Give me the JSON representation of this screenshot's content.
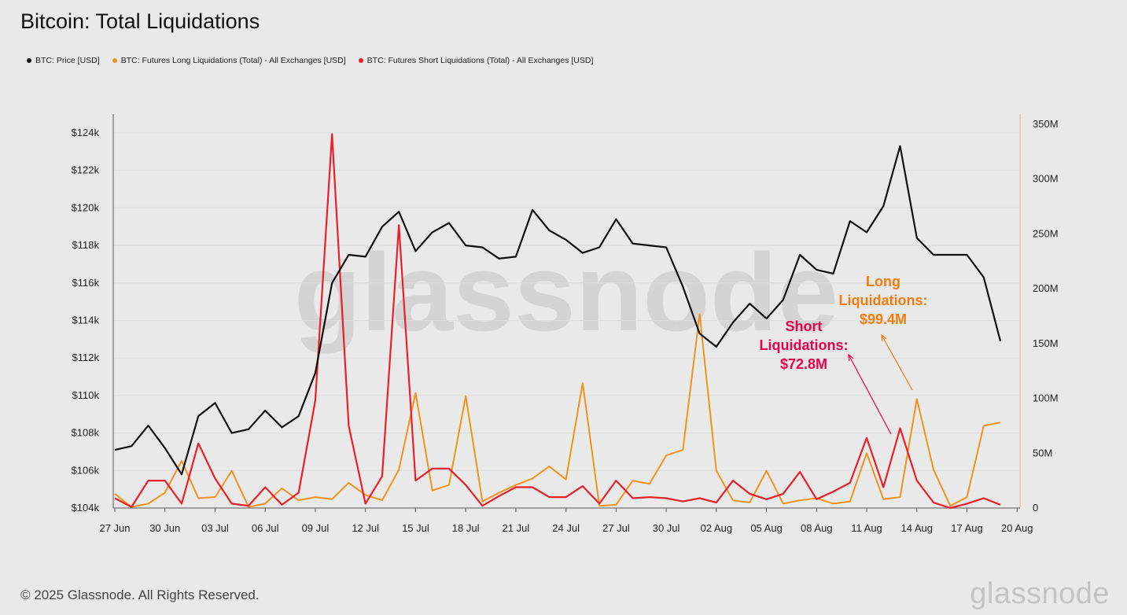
{
  "title": "Bitcoin: Total Liquidations",
  "legend": [
    {
      "label": "BTC: Price [USD]",
      "color": "#111111"
    },
    {
      "label": "BTC: Futures Long Liquidations (Total) - All Exchanges [USD]",
      "color": "#f0921e"
    },
    {
      "label": "BTC: Futures Short Liquidations (Total) - All Exchanges [USD]",
      "color": "#e8202a"
    }
  ],
  "footer": "© 2025 Glassnode. All Rights Reserved.",
  "brand": "glassnode",
  "watermark": "glassnode",
  "colors": {
    "price": "#111111",
    "long": "#f0921e",
    "short": "#e8202a",
    "short_annotation": "#e8004f",
    "long_annotation": "#f07d10"
  },
  "chart_data": {
    "type": "line",
    "dates": [
      "27 Jun",
      "28 Jun",
      "29 Jun",
      "30 Jun",
      "01 Jul",
      "02 Jul",
      "03 Jul",
      "04 Jul",
      "05 Jul",
      "06 Jul",
      "07 Jul",
      "08 Jul",
      "09 Jul",
      "10 Jul",
      "11 Jul",
      "12 Jul",
      "13 Jul",
      "14 Jul",
      "15 Jul",
      "16 Jul",
      "17 Jul",
      "18 Jul",
      "19 Jul",
      "20 Jul",
      "21 Jul",
      "22 Jul",
      "23 Jul",
      "24 Jul",
      "25 Jul",
      "26 Jul",
      "27 Jul",
      "28 Jul",
      "29 Jul",
      "30 Jul",
      "31 Jul",
      "01 Aug",
      "02 Aug",
      "03 Aug",
      "04 Aug",
      "05 Aug",
      "06 Aug",
      "07 Aug",
      "08 Aug",
      "09 Aug",
      "10 Aug",
      "11 Aug",
      "12 Aug",
      "13 Aug",
      "14 Aug",
      "15 Aug",
      "16 Aug",
      "17 Aug",
      "18 Aug",
      "19 Aug"
    ],
    "x_ticks": [
      "27 Jun",
      "30 Jun",
      "03 Jul",
      "06 Jul",
      "09 Jul",
      "12 Jul",
      "15 Jul",
      "18 Jul",
      "21 Jul",
      "24 Jul",
      "27 Jul",
      "30 Jul",
      "02 Aug",
      "05 Aug",
      "08 Aug",
      "11 Aug",
      "14 Aug",
      "17 Aug",
      "20 Aug"
    ],
    "y_left": {
      "ticks": [
        "$104k",
        "$106k",
        "$108k",
        "$110k",
        "$112k",
        "$114k",
        "$116k",
        "$118k",
        "$120k",
        "$122k",
        "$124k"
      ],
      "min": 104000,
      "max": 124000
    },
    "y_right": {
      "ticks": [
        "0",
        "50M",
        "100M",
        "150M",
        "200M",
        "250M",
        "300M",
        "350M"
      ],
      "min": 0,
      "max": 350000000
    },
    "series": [
      {
        "name": "BTC: Price [USD]",
        "axis": "left",
        "values": [
          107100,
          107300,
          108400,
          107200,
          105800,
          108900,
          109600,
          108000,
          108200,
          109200,
          108300,
          108900,
          111200,
          116000,
          117500,
          117400,
          119000,
          119800,
          117700,
          118700,
          119200,
          118000,
          117900,
          117300,
          117400,
          119900,
          118800,
          118300,
          117600,
          117900,
          119400,
          118100,
          118000,
          117900,
          115800,
          113300,
          112600,
          113900,
          114900,
          114100,
          115100,
          117500,
          116700,
          116500,
          119300,
          118700,
          120100,
          123300,
          118400,
          117500,
          117500,
          117500,
          116300,
          112900
        ]
      },
      {
        "name": "BTC: Futures Long Liquidations (Total) - All Exchanges [USD]",
        "axis": "right",
        "values": [
          13000000,
          1000000,
          4000000,
          14000000,
          43000000,
          9000000,
          10000000,
          34000000,
          1000000,
          4000000,
          18000000,
          7000000,
          10000000,
          8000000,
          23000000,
          12000000,
          7000000,
          35000000,
          105000000,
          16000000,
          21000000,
          102000000,
          6000000,
          14000000,
          21000000,
          27000000,
          38000000,
          26000000,
          114000000,
          2000000,
          3000000,
          25000000,
          22000000,
          48000000,
          53000000,
          177000000,
          34000000,
          7000000,
          5000000,
          34000000,
          4000000,
          7000000,
          9000000,
          4000000,
          6000000,
          50000000,
          8000000,
          10000000,
          99400000,
          35000000,
          2000000,
          10000000,
          75000000,
          78000000
        ]
      },
      {
        "name": "BTC: Futures Short Liquidations (Total) - All Exchanges [USD]",
        "axis": "right",
        "values": [
          9000000,
          1000000,
          25000000,
          25000000,
          4000000,
          59000000,
          27000000,
          4000000,
          2000000,
          19000000,
          3000000,
          14000000,
          98000000,
          341000000,
          75000000,
          4000000,
          29000000,
          258000000,
          25000000,
          36000000,
          36000000,
          21000000,
          2000000,
          11000000,
          19000000,
          19000000,
          10000000,
          10000000,
          20000000,
          4000000,
          25000000,
          9000000,
          10000000,
          9000000,
          6000000,
          9000000,
          5000000,
          25000000,
          13000000,
          8000000,
          13000000,
          33000000,
          8000000,
          15000000,
          23000000,
          64000000,
          19000000,
          72800000,
          25000000,
          5000000,
          0,
          4000000,
          9000000,
          3000000
        ]
      }
    ],
    "annotations": [
      {
        "text": [
          "Short",
          "Liquidations:",
          "$72.8M"
        ],
        "color": "#e8004f"
      },
      {
        "text": [
          "Long",
          "Liquidations:",
          "$99.4M"
        ],
        "color": "#f07d10"
      }
    ],
    "grid": "horizontal"
  }
}
